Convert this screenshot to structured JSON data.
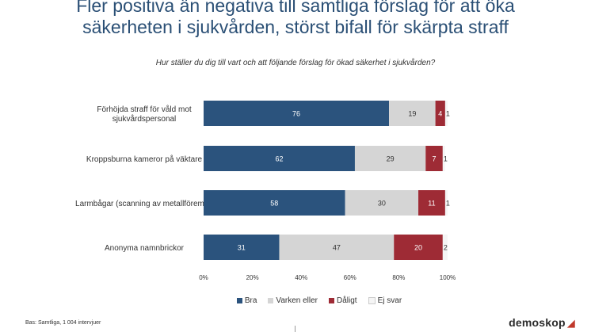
{
  "page": {
    "title_line1": "Fler positiva än negativa till samtliga förslag för att öka",
    "title_line2": "säkerheten i sjukvården, störst bifall för skärpta straff",
    "subtitle": "Hur ställer du dig till vart och att följande förslag för ökad säkerhet i sjukvården?",
    "footnote": "Bas: Samtliga, 1 004 intervjuer",
    "logo": "demoskop",
    "logo_mark": "◢"
  },
  "chart_data": {
    "type": "bar",
    "orientation": "horizontal",
    "stacked": true,
    "title": "Hur ställer du dig till vart och att följande förslag för ökad säkerhet i sjukvården?",
    "categories": [
      [
        "Förhöjda straff för våld mot",
        "sjukvårdspersonal"
      ],
      [
        "Kroppsburna kameror på väktare"
      ],
      [
        "Larmbågar (scanning av metallföremål)"
      ],
      [
        "Anonyma namnbrickor"
      ]
    ],
    "series": [
      {
        "name": "Bra",
        "color": "#2b537d",
        "label_color": "#ffffff",
        "values": [
          76,
          62,
          58,
          31
        ]
      },
      {
        "name": "Varken eller",
        "color": "#d5d5d5",
        "label_color": "#333333",
        "values": [
          19,
          29,
          30,
          47
        ]
      },
      {
        "name": "Dåligt",
        "color": "#9e2b35",
        "label_color": "#ffffff",
        "values": [
          4,
          7,
          11,
          20
        ]
      },
      {
        "name": "Ej svar",
        "color": "#f5f5f5",
        "label_color": "#333333",
        "values": [
          1,
          1,
          1,
          2
        ]
      }
    ],
    "xlim": [
      0,
      100
    ],
    "xticks": [
      0,
      20,
      40,
      60,
      80,
      100
    ],
    "xtick_labels": [
      "0%",
      "20%",
      "40%",
      "60%",
      "80%",
      "100%"
    ],
    "grid": false,
    "legend_position": "bottom"
  }
}
